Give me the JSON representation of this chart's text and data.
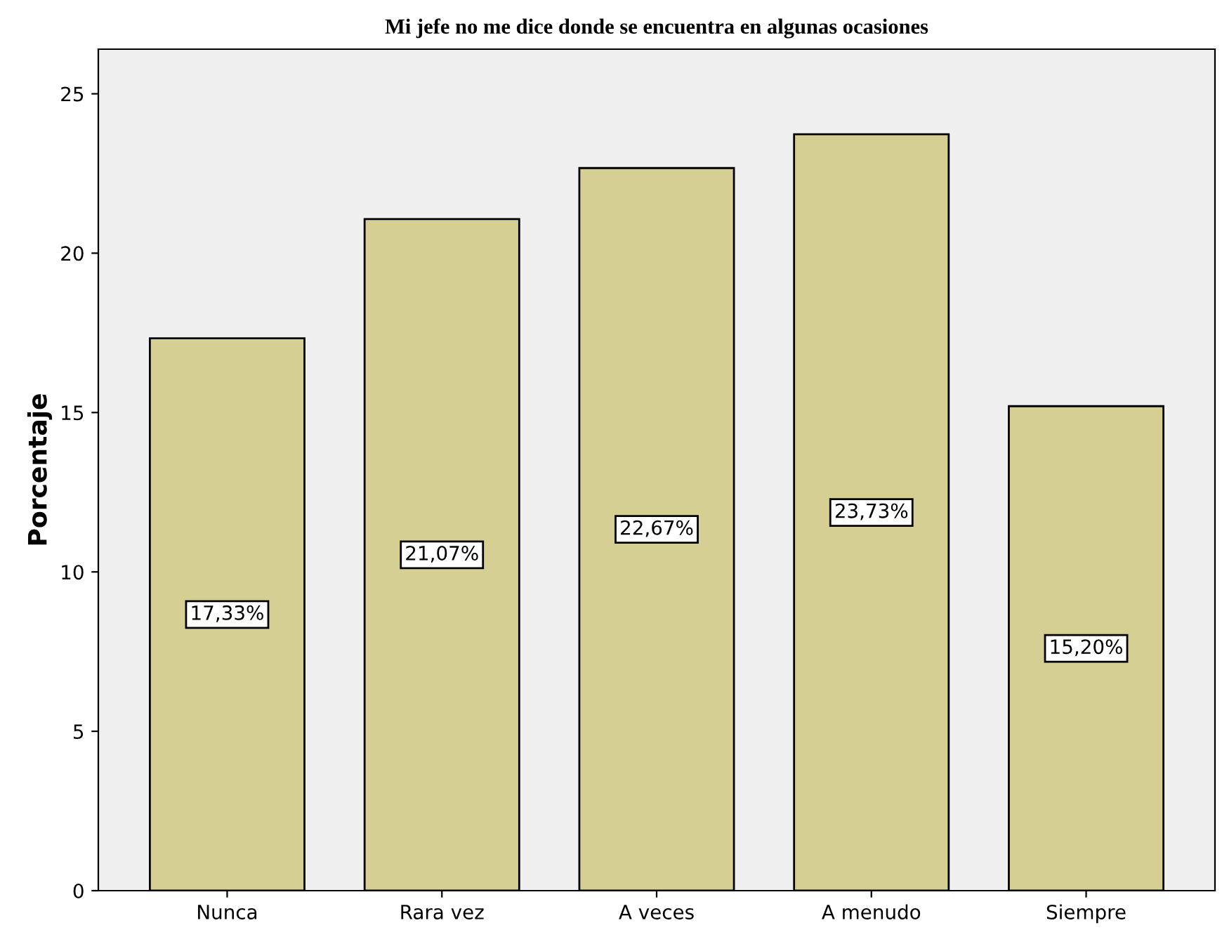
{
  "chart_data": {
    "type": "bar",
    "title": "Mi jefe no me dice donde se encuentra en algunas ocasiones",
    "ylabel": "Porcentaje",
    "categories": [
      "Nunca",
      "Rara vez",
      "A veces",
      "A menudo",
      "Siempre"
    ],
    "values": [
      17.33,
      21.07,
      22.67,
      23.73,
      15.2
    ],
    "value_labels": [
      "17,33%",
      "21,07%",
      "22,67%",
      "23,73%",
      "15,20%"
    ],
    "color": "#d6cf94",
    "ylim": [
      0,
      26.4
    ],
    "yticks": [
      0,
      5,
      10,
      15,
      20,
      25
    ],
    "grid": false,
    "legend": false
  }
}
